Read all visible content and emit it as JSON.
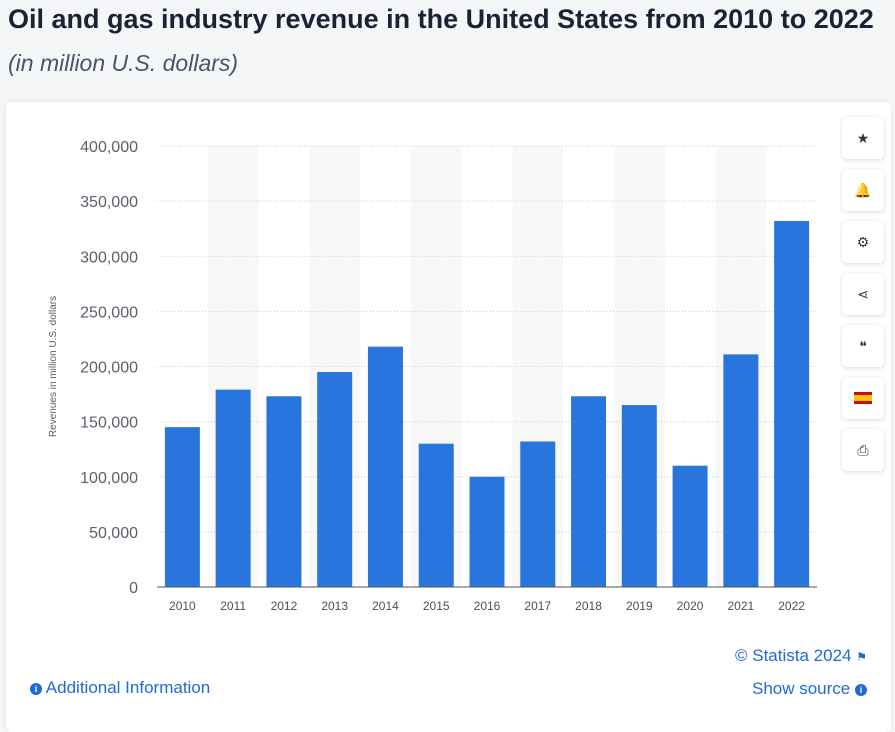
{
  "header": {
    "title": "Oil and gas industry revenue in the United States from 2010 to 2022",
    "subtitle": "(in million U.S. dollars)"
  },
  "sidebar": {
    "items": [
      {
        "icon": "star-icon",
        "glyph": "★"
      },
      {
        "icon": "bell-icon",
        "glyph": "🔔"
      },
      {
        "icon": "gear-icon",
        "glyph": "⚙"
      },
      {
        "icon": "share-icon",
        "glyph": "⋖"
      },
      {
        "icon": "quote-icon",
        "glyph": "❝"
      },
      {
        "icon": "flag-spain-icon",
        "glyph": ""
      },
      {
        "icon": "print-icon",
        "glyph": "⎙"
      }
    ]
  },
  "footer": {
    "copyright": "© Statista 2024",
    "additional_info": "Additional Information",
    "show_source": "Show source"
  },
  "colors": {
    "bar": "#2876dd",
    "band": "#f8f8f8",
    "grid": "#cccccc"
  },
  "chart_data": {
    "type": "bar",
    "title": "Oil and gas industry revenue in the United States from 2010 to 2022",
    "xlabel": "",
    "ylabel": "Revenues in million U.S. dollars",
    "ylim": [
      0,
      400000
    ],
    "yticks": [
      0,
      50000,
      100000,
      150000,
      200000,
      250000,
      300000,
      350000,
      400000
    ],
    "ytick_labels": [
      "0",
      "50,000",
      "100,000",
      "150,000",
      "200,000",
      "250,000",
      "300,000",
      "350,000",
      "400,000"
    ],
    "categories": [
      "2010",
      "2011",
      "2012",
      "2013",
      "2014",
      "2015",
      "2016",
      "2017",
      "2018",
      "2019",
      "2020",
      "2021",
      "2022"
    ],
    "values": [
      145000,
      179000,
      173000,
      195000,
      218000,
      130000,
      100000,
      132000,
      173000,
      165000,
      110000,
      211000,
      332000
    ],
    "grid": true
  }
}
